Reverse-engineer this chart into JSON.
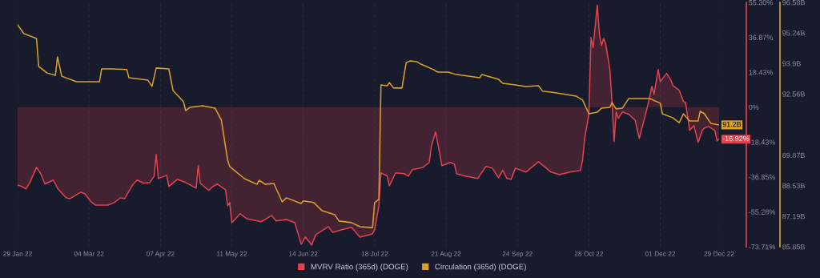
{
  "chart_data": {
    "type": "line",
    "xlim": [
      "2022-01-29",
      "2022-12-29"
    ],
    "xticks": [
      {
        "value": "2022-01-29",
        "label": "29 Jan 22"
      },
      {
        "value": "2022-03-04",
        "label": "04 Mar 22"
      },
      {
        "value": "2022-04-07",
        "label": "07 Apr 22"
      },
      {
        "value": "2022-05-11",
        "label": "11 May 22"
      },
      {
        "value": "2022-06-14",
        "label": "14 Jun 22"
      },
      {
        "value": "2022-07-18",
        "label": "18 Jul 22"
      },
      {
        "value": "2022-08-21",
        "label": "21 Aug 22"
      },
      {
        "value": "2022-09-24",
        "label": "24 Sep 22"
      },
      {
        "value": "2022-10-28",
        "label": "28 Oct 22"
      },
      {
        "value": "2022-12-01",
        "label": "01 Dec 22"
      },
      {
        "value": "2022-12-29",
        "label": "29 Dec 22"
      }
    ],
    "ylim": [
      -73.71,
      55.3
    ],
    "yticks": [
      {
        "value": 55.3,
        "label": "55.30%"
      },
      {
        "value": 36.87,
        "label": "36.87%"
      },
      {
        "value": 18.43,
        "label": "18.43%"
      },
      {
        "value": 0,
        "label": "0%"
      },
      {
        "value": -18.43,
        "label": "-18.43%"
      },
      {
        "value": -36.85,
        "label": "-36.85%"
      },
      {
        "value": -55.28,
        "label": "-55.28%"
      },
      {
        "value": -73.71,
        "label": "-73.71%"
      }
    ],
    "y2lim": [
      85.85,
      96.58
    ],
    "y2ticks": [
      {
        "value": 96.58,
        "label": "96.58B"
      },
      {
        "value": 95.24,
        "label": "95.24B"
      },
      {
        "value": 93.9,
        "label": "93.9B"
      },
      {
        "value": 92.56,
        "label": "92.56B"
      },
      {
        "value": 89.87,
        "label": "89.87B"
      },
      {
        "value": 88.53,
        "label": "88.53B"
      },
      {
        "value": 87.19,
        "label": "87.19B"
      },
      {
        "value": 85.85,
        "label": "85.85B"
      }
    ],
    "grid": "x",
    "legend": "bottom",
    "marker": "none",
    "line_style": "solid",
    "series": [
      {
        "name": "MVRV Ratio (365d) (DOGE)",
        "type": "area",
        "color": "#e0424f",
        "x": [
          "2022-01-29",
          "2022-01-31",
          "2022-02-02",
          "2022-02-04",
          "2022-02-07",
          "2022-02-09",
          "2022-02-11",
          "2022-02-15",
          "2022-02-17",
          "2022-02-21",
          "2022-02-23",
          "2022-02-28",
          "2022-03-02",
          "2022-03-05",
          "2022-03-07",
          "2022-03-13",
          "2022-03-16",
          "2022-03-19",
          "2022-03-21",
          "2022-03-25",
          "2022-03-27",
          "2022-03-30",
          "2022-04-02",
          "2022-04-04",
          "2022-04-05",
          "2022-04-06",
          "2022-04-10",
          "2022-04-11",
          "2022-04-15",
          "2022-04-19",
          "2022-04-24",
          "2022-04-25",
          "2022-04-26",
          "2022-04-30",
          "2022-05-02",
          "2022-05-04",
          "2022-05-08",
          "2022-05-09",
          "2022-05-10",
          "2022-05-11",
          "2022-05-15",
          "2022-05-18",
          "2022-05-25",
          "2022-05-30",
          "2022-06-01",
          "2022-06-06",
          "2022-06-10",
          "2022-06-13",
          "2022-06-15",
          "2022-06-18",
          "2022-06-20",
          "2022-06-26",
          "2022-06-28",
          "2022-07-02",
          "2022-07-07",
          "2022-07-11",
          "2022-07-17",
          "2022-07-18",
          "2022-07-20",
          "2022-07-21",
          "2022-07-24",
          "2022-07-25",
          "2022-07-28",
          "2022-08-01",
          "2022-08-03",
          "2022-08-05",
          "2022-08-10",
          "2022-08-13",
          "2022-08-14",
          "2022-08-16",
          "2022-08-18",
          "2022-08-19",
          "2022-08-23",
          "2022-08-25",
          "2022-08-26",
          "2022-08-30",
          "2022-09-05",
          "2022-09-09",
          "2022-09-12",
          "2022-09-15",
          "2022-09-17",
          "2022-09-19",
          "2022-09-21",
          "2022-09-23",
          "2022-09-28",
          "2022-10-04",
          "2022-10-10",
          "2022-10-14",
          "2022-10-19",
          "2022-10-24",
          "2022-10-25",
          "2022-10-26",
          "2022-10-28",
          "2022-10-29",
          "2022-10-30",
          "2022-11-01",
          "2022-11-02",
          "2022-11-03",
          "2022-11-04",
          "2022-11-05",
          "2022-11-07",
          "2022-11-08",
          "2022-11-09",
          "2022-11-10",
          "2022-11-11",
          "2022-11-13",
          "2022-11-16",
          "2022-11-19",
          "2022-11-21",
          "2022-11-23",
          "2022-11-25",
          "2022-11-27",
          "2022-11-28",
          "2022-11-30",
          "2022-12-01",
          "2022-12-04",
          "2022-12-06",
          "2022-12-07",
          "2022-12-10",
          "2022-12-12",
          "2022-12-13",
          "2022-12-15",
          "2022-12-17",
          "2022-12-19",
          "2022-12-21",
          "2022-12-22",
          "2022-12-24",
          "2022-12-27",
          "2022-12-28",
          "2022-12-29"
        ],
        "values": [
          -41.1,
          -41.9,
          -43.2,
          -39.4,
          -31.8,
          -35.1,
          -40.6,
          -38.5,
          -42.8,
          -47.8,
          -48.3,
          -44.9,
          -45.7,
          -50.0,
          -51.7,
          -51.7,
          -50.4,
          -47.8,
          -48.3,
          -40.6,
          -38.5,
          -40.2,
          -39.8,
          -36.4,
          -25.0,
          -37.7,
          -36.0,
          -41.9,
          -38.1,
          -39.8,
          -42.8,
          -30.9,
          -40.2,
          -44.0,
          -41.9,
          -40.6,
          -43.6,
          -52.1,
          -50.4,
          -61.0,
          -56.3,
          -58.9,
          -60.5,
          -57.2,
          -60.1,
          -59.3,
          -61.0,
          -72.4,
          -68.6,
          -72.8,
          -67.3,
          -63.1,
          -66.1,
          -64.8,
          -63.5,
          -68.6,
          -66.9,
          -64.8,
          -52.1,
          -34.7,
          -36.4,
          -41.5,
          -34.7,
          -35.1,
          -36.4,
          -33.0,
          -31.8,
          -29.2,
          -20.7,
          -13.1,
          -24.6,
          -30.9,
          -29.2,
          -30.1,
          -35.1,
          -36.4,
          -37.7,
          -31.3,
          -32.2,
          -37.3,
          -33.4,
          -37.7,
          -38.1,
          -32.2,
          -34.3,
          -28.8,
          -34.3,
          -35.6,
          -34.3,
          -33.4,
          -27.9,
          -16.5,
          -3.8,
          36.8,
          31.3,
          53.8,
          38.5,
          32.6,
          36.4,
          33.4,
          19.9,
          3.0,
          -18.2,
          -2.5,
          -5.9,
          -2.5,
          -3.8,
          -6.8,
          -16.5,
          -8.0,
          0.8,
          11.0,
          6.8,
          19.9,
          13.5,
          17.8,
          14.4,
          11.4,
          8.9,
          3.0,
          2.5,
          -12.3,
          -9.7,
          -18.6,
          -12.3,
          -11.0,
          -10.2,
          -12.3,
          -17.8,
          -16.92
        ],
        "value_labels": [
          null,
          null,
          null,
          null,
          null,
          null,
          null,
          null,
          null,
          null,
          null,
          null,
          null,
          null,
          null,
          null,
          null,
          null,
          null,
          null,
          null,
          null,
          null,
          null,
          null,
          null,
          null,
          null,
          null,
          null,
          null,
          null,
          null,
          null,
          null,
          null,
          null,
          null,
          null,
          null,
          null,
          null,
          null,
          null,
          null,
          null,
          null,
          null,
          null,
          null,
          null,
          null,
          null,
          null,
          null,
          null,
          null,
          null,
          null,
          null,
          null,
          null,
          null,
          null,
          null,
          null,
          null,
          null,
          null,
          null,
          null,
          null,
          null,
          null,
          null,
          null,
          null,
          null,
          null,
          null,
          null,
          null,
          null,
          null,
          null,
          null,
          null,
          null,
          null,
          null,
          null,
          null,
          null,
          null,
          null,
          null,
          null,
          null,
          null,
          null,
          null,
          null,
          null,
          null,
          null,
          null,
          null,
          null,
          null,
          null,
          null,
          null,
          null,
          null,
          null,
          null,
          null,
          null,
          null,
          null,
          null,
          null,
          null,
          null,
          null,
          null,
          null,
          null,
          null,
          "-16.92%"
        ]
      },
      {
        "name": "Circulation (365d) (DOGE)",
        "type": "line",
        "axis": "y2",
        "color": "#d9a12b",
        "x": [
          "2022-01-29",
          "2022-02-01",
          "2022-02-07",
          "2022-02-08",
          "2022-02-12",
          "2022-02-16",
          "2022-02-17",
          "2022-02-19",
          "2022-02-26",
          "2022-03-09",
          "2022-03-10",
          "2022-03-15",
          "2022-03-22",
          "2022-03-23",
          "2022-04-01",
          "2022-04-03",
          "2022-04-05",
          "2022-04-11",
          "2022-04-13",
          "2022-04-18",
          "2022-04-19",
          "2022-04-21",
          "2022-04-27",
          "2022-05-03",
          "2022-05-06",
          "2022-05-09",
          "2022-05-10",
          "2022-05-17",
          "2022-05-23",
          "2022-05-24",
          "2022-05-27",
          "2022-05-31",
          "2022-06-04",
          "2022-06-06",
          "2022-06-13",
          "2022-06-14",
          "2022-06-19",
          "2022-06-23",
          "2022-06-29",
          "2022-07-01",
          "2022-07-07",
          "2022-07-11",
          "2022-07-17",
          "2022-07-18",
          "2022-07-20",
          "2022-07-21",
          "2022-07-24",
          "2022-07-25",
          "2022-07-27",
          "2022-07-31",
          "2022-08-02",
          "2022-08-04",
          "2022-08-07",
          "2022-08-09",
          "2022-08-15",
          "2022-08-17",
          "2022-08-22",
          "2022-08-26",
          "2022-09-06",
          "2022-09-07",
          "2022-09-15",
          "2022-09-17",
          "2022-09-23",
          "2022-09-28",
          "2022-10-04",
          "2022-10-06",
          "2022-10-12",
          "2022-10-22",
          "2022-10-25",
          "2022-10-28",
          "2022-11-01",
          "2022-11-03",
          "2022-11-07",
          "2022-11-08",
          "2022-11-10",
          "2022-11-13",
          "2022-11-16",
          "2022-11-26",
          "2022-12-01",
          "2022-12-02",
          "2022-12-07",
          "2022-12-10",
          "2022-12-12",
          "2022-12-15",
          "2022-12-19",
          "2022-12-20",
          "2022-12-22",
          "2022-12-25",
          "2022-12-29"
        ],
        "values": [
          95.6,
          95.21,
          95.0,
          93.77,
          93.48,
          93.38,
          94.19,
          93.34,
          93.1,
          93.1,
          93.66,
          93.66,
          93.63,
          93.27,
          93.17,
          92.89,
          93.7,
          93.66,
          92.71,
          92.22,
          91.83,
          91.97,
          92.04,
          91.94,
          91.41,
          89.65,
          89.37,
          88.84,
          88.59,
          88.77,
          88.59,
          88.63,
          87.82,
          88.0,
          87.75,
          87.86,
          87.79,
          87.43,
          87.26,
          86.98,
          86.91,
          86.73,
          86.69,
          87.79,
          87.93,
          92.96,
          92.92,
          93.06,
          92.82,
          92.82,
          93.94,
          94.01,
          93.98,
          93.87,
          93.63,
          93.52,
          93.52,
          93.41,
          93.27,
          93.41,
          93.2,
          93.03,
          92.96,
          92.89,
          92.92,
          92.68,
          92.61,
          92.46,
          92.29,
          91.69,
          91.76,
          91.94,
          91.97,
          92.18,
          91.9,
          91.94,
          92.36,
          92.36,
          92.15,
          91.69,
          91.51,
          91.3,
          91.69,
          91.37,
          91.37,
          91.8,
          91.69,
          91.27,
          91.2
        ],
        "value_labels": [
          null,
          null,
          null,
          null,
          null,
          null,
          null,
          null,
          null,
          null,
          null,
          null,
          null,
          null,
          null,
          null,
          null,
          null,
          null,
          null,
          null,
          null,
          null,
          null,
          null,
          null,
          null,
          null,
          null,
          null,
          null,
          null,
          null,
          null,
          null,
          null,
          null,
          null,
          null,
          null,
          null,
          null,
          null,
          null,
          null,
          null,
          null,
          null,
          null,
          null,
          null,
          null,
          null,
          null,
          null,
          null,
          null,
          null,
          null,
          null,
          null,
          null,
          null,
          null,
          null,
          null,
          null,
          null,
          null,
          null,
          null,
          null,
          null,
          null,
          null,
          null,
          null,
          null,
          null,
          null,
          null,
          null,
          null,
          null,
          null,
          null,
          null,
          null,
          "91.2B"
        ]
      }
    ]
  }
}
